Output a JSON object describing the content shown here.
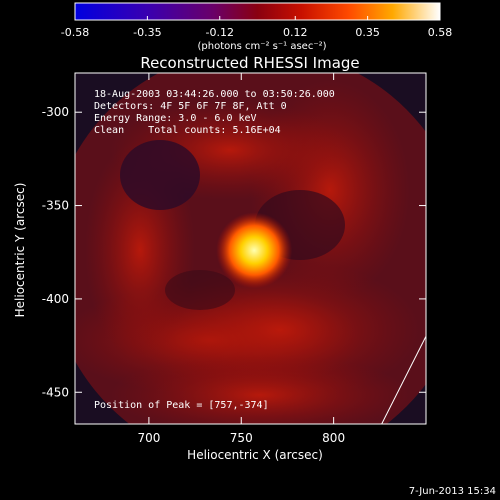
{
  "chart_data": {
    "type": "heatmap",
    "title": "Reconstructed RHESSI Image",
    "xlabel": "Heliocentric X (arcsec)",
    "ylabel": "Heliocentric Y (arcsec)",
    "x_ticks": [
      700,
      750,
      800
    ],
    "y_ticks": [
      -300,
      -350,
      -400,
      -450
    ],
    "xlim": [
      660,
      850
    ],
    "ylim": [
      -467,
      -279
    ],
    "colorbar": {
      "ticks": [
        "-0.58",
        "-0.35",
        "-0.12",
        "0.12",
        "0.35",
        "0.58"
      ],
      "range": [
        -0.58,
        0.58
      ],
      "unit_label": "(photons cm⁻² s⁻¹ asec⁻²)"
    },
    "annotations": [
      "18-Aug-2003 03:44:26.000 to 03:50:26.000",
      "Detectors: 4F 5F 6F 7F 8F, Att 0",
      "Energy Range: 3.0 - 6.0 keV",
      "Clean    Total counts: 5.16E+04"
    ],
    "peak_label": "Position of Peak = [757,-374]",
    "peak": {
      "x": 757,
      "y": -374,
      "value": 0.58
    },
    "limb_line": [
      [
        826,
        -467
      ],
      [
        850,
        -420
      ]
    ],
    "grid": false
  },
  "footer": {
    "date": "7-Jun-2013 15:34"
  }
}
